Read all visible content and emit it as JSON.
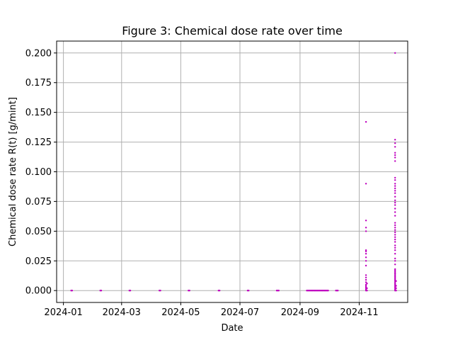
{
  "chart_data": {
    "type": "scatter",
    "title": "Figure 3: Chemical dose rate over time",
    "xlabel": "Date",
    "ylabel": "Chemical dose rate R(t) [g/mint]",
    "x_axis_type": "date",
    "xlim": [
      "2023-12-25",
      "2024-12-21"
    ],
    "ylim": [
      -0.01,
      0.21
    ],
    "x_ticks": [
      "2024-01-01",
      "2024-03-01",
      "2024-05-01",
      "2024-07-01",
      "2024-09-01",
      "2024-11-01"
    ],
    "x_tick_labels": [
      "2024-01",
      "2024-03",
      "2024-05",
      "2024-07",
      "2024-09",
      "2024-11"
    ],
    "y_ticks": [
      0.0,
      0.025,
      0.05,
      0.075,
      0.1,
      0.125,
      0.15,
      0.175,
      0.2
    ],
    "y_tick_labels": [
      "0.000",
      "0.025",
      "0.050",
      "0.075",
      "0.100",
      "0.125",
      "0.150",
      "0.175",
      "0.200"
    ],
    "grid": true,
    "marker_color": "#bf00bf",
    "series": [
      {
        "points": [
          [
            "2024-01-09",
            0.0
          ],
          [
            "2024-01-10",
            0.0
          ],
          [
            "2024-02-08",
            0.0
          ],
          [
            "2024-02-09",
            0.0
          ],
          [
            "2024-03-09",
            0.0
          ],
          [
            "2024-03-10",
            0.0
          ],
          [
            "2024-04-09",
            0.0
          ],
          [
            "2024-04-10",
            0.0
          ],
          [
            "2024-05-09",
            0.0
          ],
          [
            "2024-05-10",
            0.0
          ],
          [
            "2024-06-09",
            0.0
          ],
          [
            "2024-06-10",
            0.0
          ],
          [
            "2024-07-09",
            0.0
          ],
          [
            "2024-07-10",
            0.0
          ],
          [
            "2024-08-08",
            0.0
          ],
          [
            "2024-08-09",
            0.0
          ],
          [
            "2024-08-10",
            0.0
          ],
          [
            "2024-09-08",
            0.0
          ],
          [
            "2024-09-09",
            0.0
          ],
          [
            "2024-09-10",
            0.0
          ],
          [
            "2024-09-11",
            0.0
          ],
          [
            "2024-09-12",
            0.0
          ],
          [
            "2024-09-13",
            0.0
          ],
          [
            "2024-09-14",
            0.0
          ],
          [
            "2024-09-15",
            0.0
          ],
          [
            "2024-09-16",
            0.0
          ],
          [
            "2024-09-17",
            0.0
          ],
          [
            "2024-09-18",
            0.0
          ],
          [
            "2024-09-19",
            0.0
          ],
          [
            "2024-09-20",
            0.0
          ],
          [
            "2024-09-21",
            0.0
          ],
          [
            "2024-09-22",
            0.0
          ],
          [
            "2024-09-23",
            0.0
          ],
          [
            "2024-09-24",
            0.0
          ],
          [
            "2024-09-25",
            0.0
          ],
          [
            "2024-09-26",
            0.0
          ],
          [
            "2024-09-27",
            0.0
          ],
          [
            "2024-09-28",
            0.0
          ],
          [
            "2024-09-29",
            0.0
          ],
          [
            "2024-09-30",
            0.0
          ],
          [
            "2024-10-08",
            0.0
          ],
          [
            "2024-10-09",
            0.0
          ],
          [
            "2024-10-10",
            0.0
          ],
          [
            "2024-11-08",
            0.142
          ],
          [
            "2024-11-08",
            0.09
          ],
          [
            "2024-11-08",
            0.059
          ],
          [
            "2024-11-08",
            0.053
          ],
          [
            "2024-11-08",
            0.05
          ],
          [
            "2024-11-08",
            0.034
          ],
          [
            "2024-11-08",
            0.033
          ],
          [
            "2024-11-08",
            0.031
          ],
          [
            "2024-11-08",
            0.028
          ],
          [
            "2024-11-08",
            0.025
          ],
          [
            "2024-11-08",
            0.021
          ],
          [
            "2024-11-08",
            0.013
          ],
          [
            "2024-11-08",
            0.011
          ],
          [
            "2024-11-08",
            0.009
          ],
          [
            "2024-11-08",
            0.007
          ],
          [
            "2024-11-08",
            0.005
          ],
          [
            "2024-11-08",
            0.004
          ],
          [
            "2024-11-08",
            0.003
          ],
          [
            "2024-11-08",
            0.002
          ],
          [
            "2024-11-08",
            0.001
          ],
          [
            "2024-11-08",
            0.0
          ],
          [
            "2024-11-09",
            0.006
          ],
          [
            "2024-11-09",
            0.002
          ],
          [
            "2024-11-09",
            0.0
          ],
          [
            "2024-12-08",
            0.2
          ],
          [
            "2024-12-08",
            0.127
          ],
          [
            "2024-12-08",
            0.124
          ],
          [
            "2024-12-08",
            0.121
          ],
          [
            "2024-12-08",
            0.116
          ],
          [
            "2024-12-08",
            0.114
          ],
          [
            "2024-12-08",
            0.112
          ],
          [
            "2024-12-08",
            0.109
          ],
          [
            "2024-12-08",
            0.095
          ],
          [
            "2024-12-08",
            0.093
          ],
          [
            "2024-12-08",
            0.09
          ],
          [
            "2024-12-08",
            0.088
          ],
          [
            "2024-12-08",
            0.086
          ],
          [
            "2024-12-08",
            0.084
          ],
          [
            "2024-12-08",
            0.082
          ],
          [
            "2024-12-08",
            0.079
          ],
          [
            "2024-12-08",
            0.076
          ],
          [
            "2024-12-08",
            0.074
          ],
          [
            "2024-12-08",
            0.072
          ],
          [
            "2024-12-08",
            0.069
          ],
          [
            "2024-12-08",
            0.066
          ],
          [
            "2024-12-08",
            0.063
          ],
          [
            "2024-12-08",
            0.057
          ],
          [
            "2024-12-08",
            0.055
          ],
          [
            "2024-12-08",
            0.053
          ],
          [
            "2024-12-08",
            0.051
          ],
          [
            "2024-12-08",
            0.049
          ],
          [
            "2024-12-08",
            0.047
          ],
          [
            "2024-12-08",
            0.045
          ],
          [
            "2024-12-08",
            0.043
          ],
          [
            "2024-12-08",
            0.041
          ],
          [
            "2024-12-08",
            0.038
          ],
          [
            "2024-12-08",
            0.036
          ],
          [
            "2024-12-08",
            0.034
          ],
          [
            "2024-12-08",
            0.031
          ],
          [
            "2024-12-08",
            0.027
          ],
          [
            "2024-12-08",
            0.025
          ],
          [
            "2024-12-08",
            0.022
          ],
          [
            "2024-12-08",
            0.018
          ],
          [
            "2024-12-08",
            0.017
          ],
          [
            "2024-12-08",
            0.016
          ],
          [
            "2024-12-08",
            0.015
          ],
          [
            "2024-12-08",
            0.014
          ],
          [
            "2024-12-08",
            0.013
          ],
          [
            "2024-12-08",
            0.012
          ],
          [
            "2024-12-08",
            0.011
          ],
          [
            "2024-12-08",
            0.01
          ],
          [
            "2024-12-08",
            0.009
          ],
          [
            "2024-12-08",
            0.008
          ],
          [
            "2024-12-08",
            0.007
          ],
          [
            "2024-12-08",
            0.006
          ],
          [
            "2024-12-08",
            0.005
          ],
          [
            "2024-12-08",
            0.004
          ],
          [
            "2024-12-08",
            0.003
          ],
          [
            "2024-12-08",
            0.002
          ],
          [
            "2024-12-08",
            0.001
          ],
          [
            "2024-12-08",
            0.0
          ],
          [
            "2024-12-09",
            0.008
          ],
          [
            "2024-12-09",
            0.004
          ],
          [
            "2024-12-09",
            0.002
          ],
          [
            "2024-12-09",
            0.0
          ]
        ]
      }
    ]
  }
}
